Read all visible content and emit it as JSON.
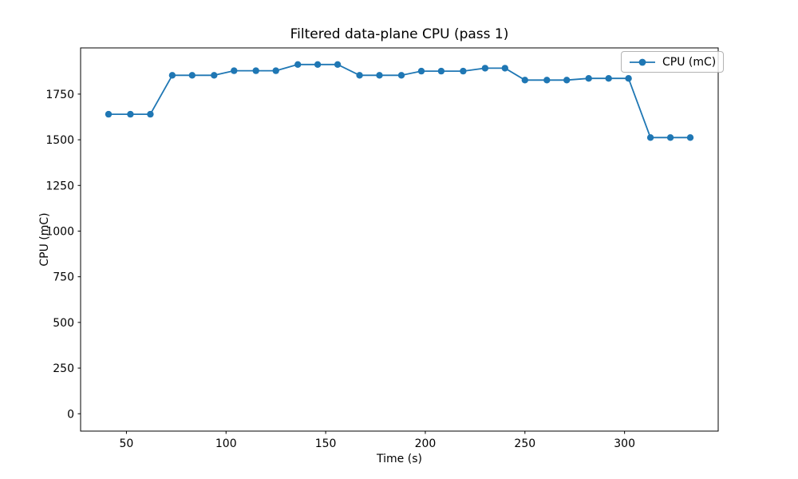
{
  "figure": {
    "background": "#ffffff"
  },
  "chart_data": {
    "type": "line",
    "title": "Filtered data-plane CPU (pass 1)",
    "xlabel": "Time (s)",
    "ylabel": "CPU (mC)",
    "xlim": [
      27,
      347
    ],
    "ylim": [
      -95,
      2003
    ],
    "xticks": [
      50,
      100,
      150,
      200,
      250,
      300
    ],
    "yticks": [
      0,
      250,
      500,
      750,
      1000,
      1250,
      1500,
      1750
    ],
    "grid": false,
    "legend": {
      "position": "upper right",
      "entries": [
        "CPU (mC)"
      ]
    },
    "series": [
      {
        "name": "CPU (mC)",
        "color": "#1f77b4",
        "marker": "circle",
        "x": [
          41,
          52,
          62,
          73,
          83,
          94,
          104,
          115,
          125,
          136,
          146,
          156,
          167,
          177,
          188,
          198,
          208,
          219,
          230,
          240,
          250,
          261,
          271,
          282,
          292,
          302,
          313,
          323,
          333
        ],
        "y": [
          1640,
          1640,
          1640,
          1853,
          1853,
          1853,
          1878,
          1878,
          1878,
          1912,
          1912,
          1912,
          1853,
          1853,
          1853,
          1876,
          1876,
          1876,
          1892,
          1892,
          1827,
          1827,
          1827,
          1836,
          1836,
          1836,
          1512,
          1512,
          1512
        ]
      }
    ]
  }
}
